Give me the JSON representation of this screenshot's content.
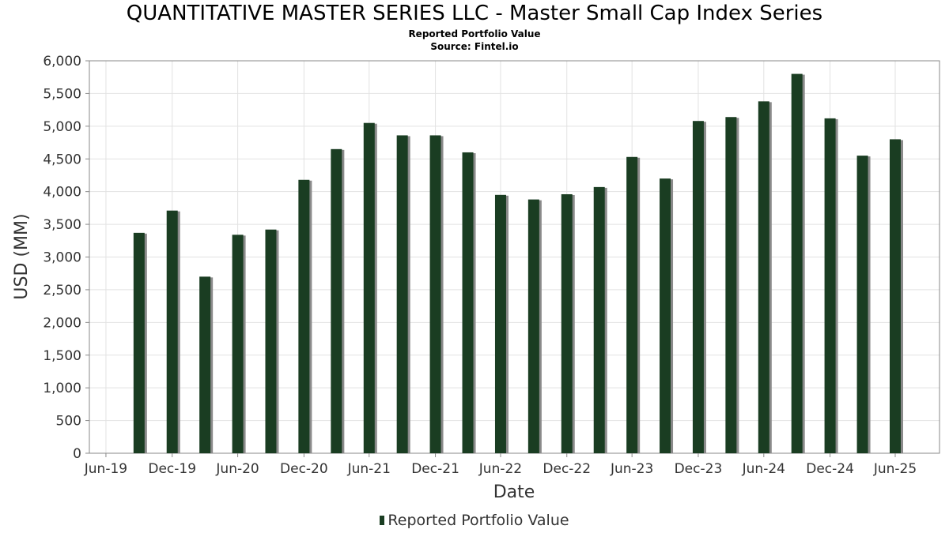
{
  "chart_data": {
    "type": "bar",
    "title": "QUANTITATIVE MASTER SERIES LLC - Master Small Cap Index Series",
    "subtitle": "Reported Portfolio Value",
    "source": "Source: Fintel.io",
    "xlabel": "Date",
    "ylabel": "USD (MM)",
    "ylim": [
      0,
      6000
    ],
    "yticks": [
      0,
      500,
      1000,
      1500,
      2000,
      2500,
      3000,
      3500,
      4000,
      4500,
      5000,
      5500,
      6000
    ],
    "ytick_labels": [
      "0",
      "500",
      "1,000",
      "1,500",
      "2,000",
      "2,500",
      "3,000",
      "3,500",
      "4,000",
      "4,500",
      "5,000",
      "5,500",
      "6,000"
    ],
    "xlim": [
      "2019-05-15",
      "2025-10-31"
    ],
    "xticks": [
      {
        "date": "2019-06-30",
        "label": "Jun-19"
      },
      {
        "date": "2019-12-31",
        "label": "Dec-19"
      },
      {
        "date": "2020-06-30",
        "label": "Jun-20"
      },
      {
        "date": "2020-12-31",
        "label": "Dec-20"
      },
      {
        "date": "2021-06-30",
        "label": "Jun-21"
      },
      {
        "date": "2021-12-31",
        "label": "Dec-21"
      },
      {
        "date": "2022-06-30",
        "label": "Jun-22"
      },
      {
        "date": "2022-12-31",
        "label": "Dec-22"
      },
      {
        "date": "2023-06-30",
        "label": "Jun-23"
      },
      {
        "date": "2023-12-31",
        "label": "Dec-23"
      },
      {
        "date": "2024-06-30",
        "label": "Jun-24"
      },
      {
        "date": "2024-12-31",
        "label": "Dec-24"
      },
      {
        "date": "2025-06-30",
        "label": "Jun-25"
      }
    ],
    "grid": true,
    "legend": "bottom",
    "series": [
      {
        "name": "Reported Portfolio Value",
        "color": "#1a3d22",
        "x": [
          "2019-09-30",
          "2019-12-31",
          "2020-03-31",
          "2020-06-30",
          "2020-09-30",
          "2020-12-31",
          "2021-03-31",
          "2021-06-30",
          "2021-09-30",
          "2021-12-31",
          "2022-03-31",
          "2022-06-30",
          "2022-09-30",
          "2022-12-31",
          "2023-03-31",
          "2023-06-30",
          "2023-09-30",
          "2023-12-31",
          "2024-03-31",
          "2024-06-30",
          "2024-09-30",
          "2024-12-31",
          "2025-03-31",
          "2025-06-30"
        ],
        "values": [
          3370,
          3710,
          2700,
          3340,
          3420,
          4180,
          4650,
          5050,
          4860,
          4860,
          4600,
          3950,
          3880,
          3960,
          4070,
          4530,
          4200,
          5080,
          5140,
          5380,
          5800,
          5120,
          4550,
          4800
        ]
      }
    ]
  }
}
